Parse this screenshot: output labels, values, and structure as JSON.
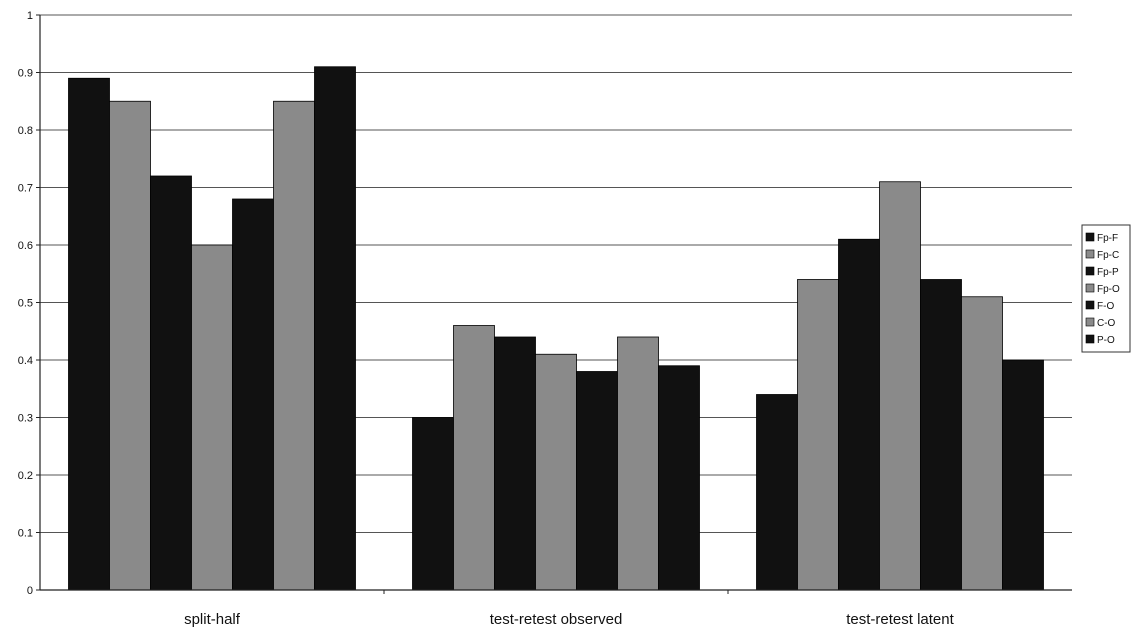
{
  "chart_data": {
    "type": "bar",
    "categories": [
      "split-half",
      "test-retest observed",
      "test-retest latent"
    ],
    "series": [
      {
        "name": "Fp-F",
        "values": [
          0.89,
          0.3,
          0.34
        ],
        "color": "#111111"
      },
      {
        "name": "Fp-C",
        "values": [
          0.85,
          0.46,
          0.54
        ],
        "color": "#8a8a8a"
      },
      {
        "name": "Fp-P",
        "values": [
          0.72,
          0.44,
          0.61
        ],
        "color": "#111111"
      },
      {
        "name": "Fp-O",
        "values": [
          0.6,
          0.41,
          0.71
        ],
        "color": "#8a8a8a"
      },
      {
        "name": "F-O",
        "values": [
          0.68,
          0.38,
          0.54
        ],
        "color": "#111111"
      },
      {
        "name": "C-O",
        "values": [
          0.85,
          0.44,
          0.51
        ],
        "color": "#8a8a8a"
      },
      {
        "name": "P-O",
        "values": [
          0.91,
          0.39,
          0.4
        ],
        "color": "#111111"
      }
    ],
    "yticks": [
      "0",
      "0.1",
      "0.2",
      "0.3",
      "0.4",
      "0.5",
      "0.6",
      "0.7",
      "0.8",
      "0.9",
      "1"
    ],
    "ylim": [
      0,
      1
    ],
    "grid": true,
    "legend_position": "right"
  }
}
